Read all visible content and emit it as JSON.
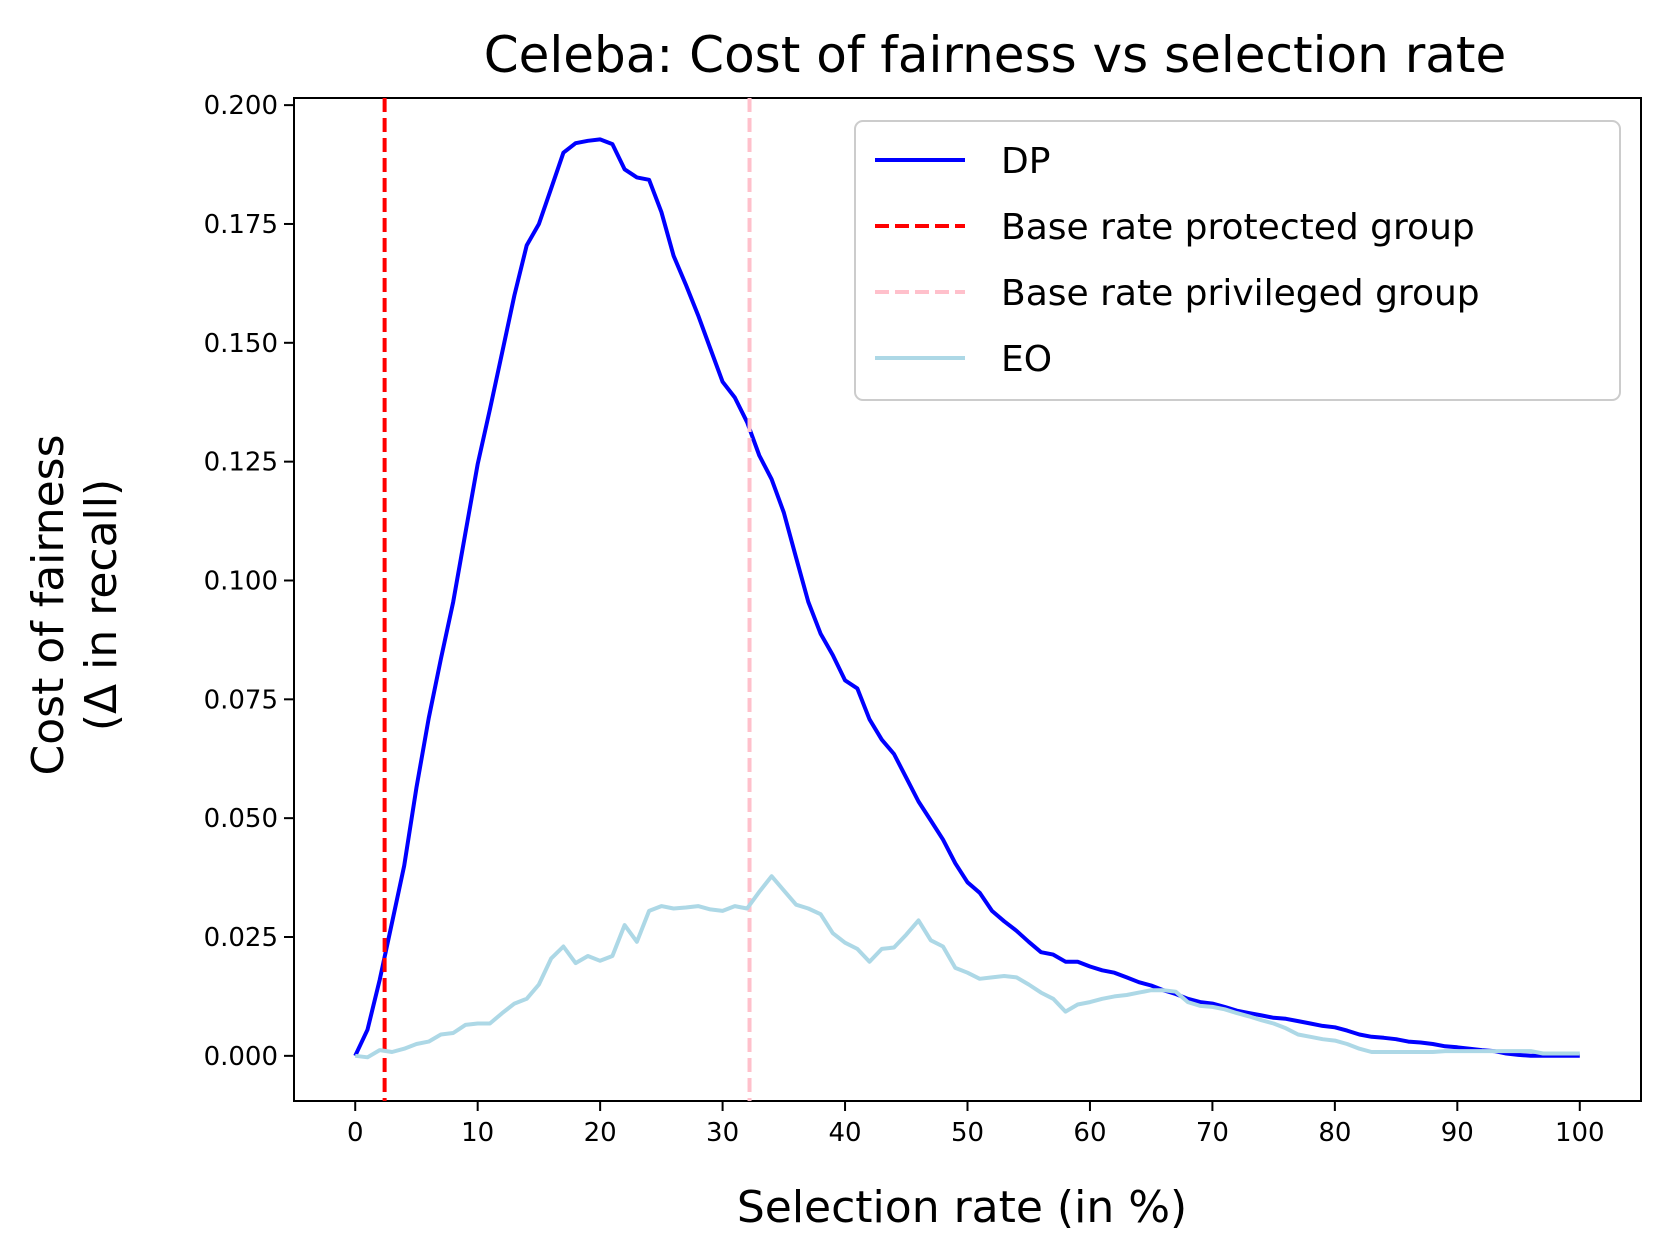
{
  "chart_data": {
    "type": "line",
    "title": "Celeba: Cost of fairness vs selection rate",
    "xlabel": "Selection rate (in %)",
    "ylabel_lines": [
      "Cost of fairness",
      "(Δ in recall)"
    ],
    "xlim": [
      -5,
      105
    ],
    "ylim": [
      -0.0095,
      0.2015
    ],
    "xticks": [
      0,
      10,
      20,
      30,
      40,
      50,
      60,
      70,
      80,
      90,
      100
    ],
    "xtick_labels": [
      "0",
      "10",
      "20",
      "30",
      "40",
      "50",
      "60",
      "70",
      "80",
      "90",
      "100"
    ],
    "yticks": [
      0,
      0.025,
      0.05,
      0.075,
      0.1,
      0.125,
      0.15,
      0.175,
      0.2
    ],
    "ytick_labels": [
      "0.000",
      "0.025",
      "0.050",
      "0.075",
      "0.100",
      "0.125",
      "0.150",
      "0.175",
      "0.200"
    ],
    "grid": false,
    "legend_position": "top-right",
    "series": [
      {
        "name": "DP",
        "color": "#0000ff",
        "style": "solid",
        "points": [
          [
            0,
            0
          ],
          [
            1,
            0.0055
          ],
          [
            2,
            0.016
          ],
          [
            3,
            0.028
          ],
          [
            4,
            0.04
          ],
          [
            5,
            0.0565
          ],
          [
            6,
            0.071
          ],
          [
            7,
            0.0835
          ],
          [
            8,
            0.0955
          ],
          [
            9,
            0.11
          ],
          [
            10,
            0.1245
          ],
          [
            11,
            0.136
          ],
          [
            12,
            0.148
          ],
          [
            13,
            0.16
          ],
          [
            14,
            0.1705
          ],
          [
            15,
            0.175
          ],
          [
            16,
            0.1825
          ],
          [
            17,
            0.19
          ],
          [
            18,
            0.192
          ],
          [
            19,
            0.1925
          ],
          [
            20,
            0.1928
          ],
          [
            21,
            0.1918
          ],
          [
            22,
            0.1865
          ],
          [
            23,
            0.1848
          ],
          [
            24,
            0.1843
          ],
          [
            25,
            0.1775
          ],
          [
            26,
            0.1683
          ],
          [
            27,
            0.1622
          ],
          [
            28,
            0.1558
          ],
          [
            29,
            0.1488
          ],
          [
            30,
            0.1418
          ],
          [
            31,
            0.1385
          ],
          [
            32,
            0.1333
          ],
          [
            33,
            0.1263
          ],
          [
            34,
            0.1213
          ],
          [
            35,
            0.1143
          ],
          [
            36,
            0.1048
          ],
          [
            37,
            0.0955
          ],
          [
            38,
            0.0888
          ],
          [
            39,
            0.0843
          ],
          [
            40,
            0.079
          ],
          [
            41,
            0.0773
          ],
          [
            42,
            0.0708
          ],
          [
            43,
            0.0665
          ],
          [
            44,
            0.0635
          ],
          [
            45,
            0.0585
          ],
          [
            46,
            0.0535
          ],
          [
            47,
            0.0495
          ],
          [
            48,
            0.0455
          ],
          [
            49,
            0.0405
          ],
          [
            50,
            0.0365
          ],
          [
            51,
            0.0343
          ],
          [
            52,
            0.0305
          ],
          [
            53,
            0.0283
          ],
          [
            54,
            0.0263
          ],
          [
            55,
            0.024
          ],
          [
            56,
            0.0218
          ],
          [
            57,
            0.0213
          ],
          [
            58,
            0.0198
          ],
          [
            59,
            0.0198
          ],
          [
            60,
            0.0188
          ],
          [
            61,
            0.018
          ],
          [
            62,
            0.0175
          ],
          [
            63,
            0.0165
          ],
          [
            64,
            0.0155
          ],
          [
            65,
            0.0148
          ],
          [
            66,
            0.0138
          ],
          [
            67,
            0.013
          ],
          [
            68,
            0.012
          ],
          [
            69,
            0.0113
          ],
          [
            70,
            0.011
          ],
          [
            71,
            0.0103
          ],
          [
            72,
            0.0095
          ],
          [
            73,
            0.009
          ],
          [
            74,
            0.0085
          ],
          [
            75,
            0.008
          ],
          [
            76,
            0.0078
          ],
          [
            77,
            0.0073
          ],
          [
            78,
            0.0068
          ],
          [
            79,
            0.0063
          ],
          [
            80,
            0.006
          ],
          [
            81,
            0.0053
          ],
          [
            82,
            0.0045
          ],
          [
            83,
            0.004
          ],
          [
            84,
            0.0038
          ],
          [
            85,
            0.0035
          ],
          [
            86,
            0.003
          ],
          [
            87,
            0.0028
          ],
          [
            88,
            0.0025
          ],
          [
            89,
            0.002
          ],
          [
            90,
            0.0018
          ],
          [
            91,
            0.0015
          ],
          [
            92,
            0.0012
          ],
          [
            93,
            0.001
          ],
          [
            94,
            0.0005
          ],
          [
            95,
            0.0002
          ],
          [
            96,
            0
          ],
          [
            97,
            0
          ],
          [
            98,
            0
          ],
          [
            99,
            0
          ],
          [
            100,
            0
          ]
        ]
      },
      {
        "name": "Base rate protected group",
        "color": "#ff0000",
        "style": "dashed",
        "vline_x": 2.4
      },
      {
        "name": "Base rate privileged group",
        "color": "#ffc0cb",
        "style": "dashed",
        "vline_x": 32.2
      },
      {
        "name": "EO",
        "color": "#add8e6",
        "style": "solid",
        "points": [
          [
            0,
            0
          ],
          [
            1,
            -0.0003
          ],
          [
            2,
            0.0012
          ],
          [
            3,
            0.0008
          ],
          [
            4,
            0.0015
          ],
          [
            5,
            0.0025
          ],
          [
            6,
            0.003
          ],
          [
            7,
            0.0045
          ],
          [
            8,
            0.0048
          ],
          [
            9,
            0.0065
          ],
          [
            10,
            0.0068
          ],
          [
            11,
            0.0068
          ],
          [
            12,
            0.009
          ],
          [
            13,
            0.011
          ],
          [
            14,
            0.012
          ],
          [
            15,
            0.015
          ],
          [
            16,
            0.0205
          ],
          [
            17,
            0.023
          ],
          [
            18,
            0.0195
          ],
          [
            19,
            0.021
          ],
          [
            20,
            0.02
          ],
          [
            21,
            0.021
          ],
          [
            22,
            0.0275
          ],
          [
            23,
            0.024
          ],
          [
            24,
            0.0305
          ],
          [
            25,
            0.0315
          ],
          [
            26,
            0.031
          ],
          [
            27,
            0.0312
          ],
          [
            28,
            0.0315
          ],
          [
            29,
            0.0308
          ],
          [
            30,
            0.0305
          ],
          [
            31,
            0.0315
          ],
          [
            32,
            0.031
          ],
          [
            33,
            0.0345
          ],
          [
            34,
            0.0378
          ],
          [
            35,
            0.0348
          ],
          [
            36,
            0.0318
          ],
          [
            37,
            0.031
          ],
          [
            38,
            0.0298
          ],
          [
            39,
            0.0258
          ],
          [
            40,
            0.0238
          ],
          [
            41,
            0.0225
          ],
          [
            42,
            0.0198
          ],
          [
            43,
            0.0225
          ],
          [
            44,
            0.0228
          ],
          [
            45,
            0.0255
          ],
          [
            46,
            0.0285
          ],
          [
            47,
            0.0243
          ],
          [
            48,
            0.023
          ],
          [
            49,
            0.0185
          ],
          [
            50,
            0.0175
          ],
          [
            51,
            0.0162
          ],
          [
            52,
            0.0165
          ],
          [
            53,
            0.0168
          ],
          [
            54,
            0.0165
          ],
          [
            55,
            0.015
          ],
          [
            56,
            0.0133
          ],
          [
            57,
            0.012
          ],
          [
            58,
            0.0093
          ],
          [
            59,
            0.0108
          ],
          [
            60,
            0.0113
          ],
          [
            61,
            0.012
          ],
          [
            62,
            0.0125
          ],
          [
            63,
            0.0128
          ],
          [
            64,
            0.0133
          ],
          [
            65,
            0.0138
          ],
          [
            66,
            0.0138
          ],
          [
            67,
            0.0135
          ],
          [
            68,
            0.0113
          ],
          [
            69,
            0.0105
          ],
          [
            70,
            0.0103
          ],
          [
            71,
            0.0098
          ],
          [
            72,
            0.009
          ],
          [
            73,
            0.0083
          ],
          [
            74,
            0.0075
          ],
          [
            75,
            0.0068
          ],
          [
            76,
            0.0058
          ],
          [
            77,
            0.0045
          ],
          [
            78,
            0.004
          ],
          [
            79,
            0.0035
          ],
          [
            80,
            0.0032
          ],
          [
            81,
            0.0025
          ],
          [
            82,
            0.0015
          ],
          [
            83,
            0.0008
          ],
          [
            84,
            0.0008
          ],
          [
            85,
            0.0008
          ],
          [
            86,
            0.0008
          ],
          [
            87,
            0.0008
          ],
          [
            88,
            0.0008
          ],
          [
            89,
            0.001
          ],
          [
            90,
            0.001
          ],
          [
            91,
            0.001
          ],
          [
            92,
            0.001
          ],
          [
            93,
            0.001
          ],
          [
            94,
            0.001
          ],
          [
            95,
            0.001
          ],
          [
            96,
            0.001
          ],
          [
            97,
            0.0005
          ],
          [
            98,
            0.0005
          ],
          [
            99,
            0.0005
          ],
          [
            100,
            0.0005
          ]
        ]
      }
    ]
  }
}
